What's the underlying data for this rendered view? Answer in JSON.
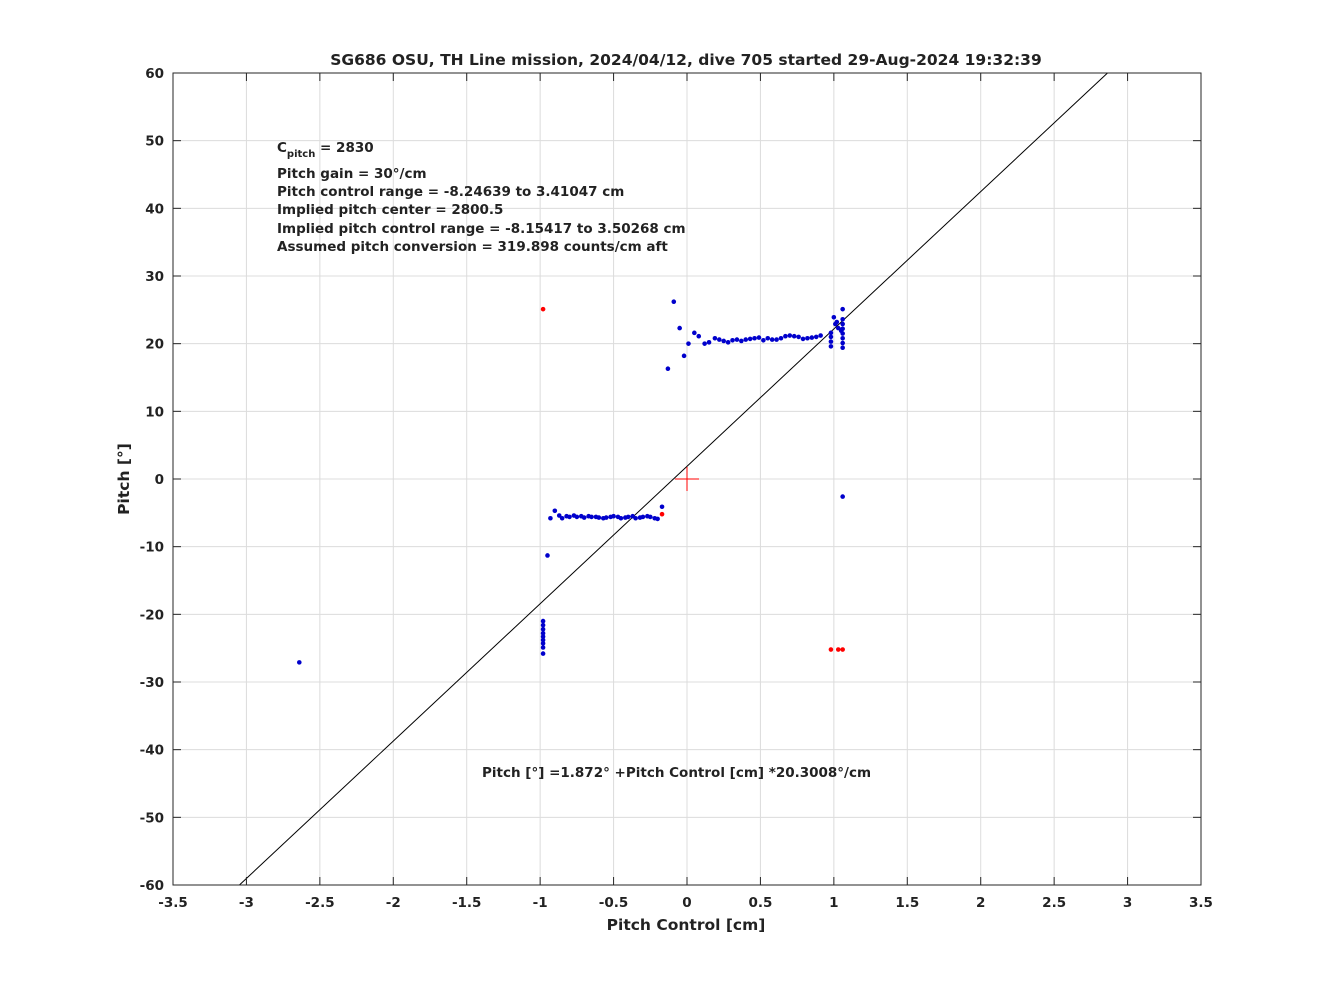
{
  "chart_data": {
    "type": "scatter",
    "title": "SG686 OSU, TH Line mission, 2024/04/12, dive 705 started 29-Aug-2024 19:32:39",
    "xlabel": "Pitch Control [cm]",
    "ylabel": "Pitch [°]",
    "xlim": [
      -3.5,
      3.5
    ],
    "ylim": [
      -60,
      60
    ],
    "grid": true,
    "xticks": [
      -3.5,
      -3,
      -2.5,
      -2,
      -1.5,
      -1,
      -0.5,
      0,
      0.5,
      1,
      1.5,
      2,
      2.5,
      3,
      3.5
    ],
    "yticks": [
      -60,
      -50,
      -40,
      -30,
      -20,
      -10,
      0,
      10,
      20,
      30,
      40,
      50,
      60
    ],
    "xtick_labels": [
      "-3.5",
      "-3",
      "-2.5",
      "-2",
      "-1.5",
      "-1",
      "-0.5",
      "0",
      "0.5",
      "1",
      "1.5",
      "2",
      "2.5",
      "3",
      "3.5"
    ],
    "ytick_labels": [
      "-60",
      "-50",
      "-40",
      "-30",
      "-20",
      "-10",
      "0",
      "10",
      "20",
      "30",
      "40",
      "50",
      "60"
    ],
    "annotations": {
      "c_pitch_main": "C",
      "c_pitch_sub": "pitch",
      "c_pitch_value": " = 2830",
      "lines": [
        "Pitch gain = 30°/cm",
        "Pitch control range = -8.24639 to 3.41047 cm",
        "Implied pitch center = 2800.5",
        "Implied pitch control range = -8.15417 to 3.50268 cm",
        "Assumed pitch conversion = 319.898 counts/cm aft"
      ],
      "fit_label": "Pitch [°] =1.872° +Pitch Control [cm] *20.3008°/cm"
    },
    "fit": {
      "intercept": 1.872,
      "slope": 20.3008,
      "color": "#000000"
    },
    "center_marker": {
      "x": 0,
      "y": 0,
      "color": "#ff0000"
    },
    "series": [
      {
        "color": "#0000cc",
        "points": [
          [
            -2.64,
            -27.1
          ],
          [
            -0.95,
            -11.3
          ],
          [
            -0.98,
            -21.0
          ],
          [
            -0.98,
            -21.6
          ],
          [
            -0.98,
            -22.2
          ],
          [
            -0.98,
            -22.8
          ],
          [
            -0.98,
            -23.3
          ],
          [
            -0.98,
            -23.8
          ],
          [
            -0.98,
            -24.3
          ],
          [
            -0.98,
            -24.9
          ],
          [
            -0.98,
            -25.8
          ],
          [
            -0.93,
            -5.8
          ],
          [
            -0.9,
            -4.7
          ],
          [
            -0.87,
            -5.4
          ],
          [
            -0.85,
            -5.8
          ],
          [
            -0.82,
            -5.5
          ],
          [
            -0.8,
            -5.6
          ],
          [
            -0.77,
            -5.4
          ],
          [
            -0.75,
            -5.6
          ],
          [
            -0.72,
            -5.5
          ],
          [
            -0.7,
            -5.7
          ],
          [
            -0.67,
            -5.5
          ],
          [
            -0.65,
            -5.6
          ],
          [
            -0.62,
            -5.6
          ],
          [
            -0.6,
            -5.7
          ],
          [
            -0.57,
            -5.8
          ],
          [
            -0.55,
            -5.7
          ],
          [
            -0.52,
            -5.6
          ],
          [
            -0.5,
            -5.5
          ],
          [
            -0.47,
            -5.6
          ],
          [
            -0.45,
            -5.8
          ],
          [
            -0.42,
            -5.7
          ],
          [
            -0.4,
            -5.6
          ],
          [
            -0.37,
            -5.5
          ],
          [
            -0.35,
            -5.8
          ],
          [
            -0.32,
            -5.7
          ],
          [
            -0.3,
            -5.6
          ],
          [
            -0.27,
            -5.5
          ],
          [
            -0.25,
            -5.6
          ],
          [
            -0.22,
            -5.8
          ],
          [
            -0.2,
            -5.9
          ],
          [
            -0.17,
            -4.1
          ],
          [
            -0.13,
            16.3
          ],
          [
            -0.09,
            26.2
          ],
          [
            -0.05,
            22.3
          ],
          [
            -0.02,
            18.2
          ],
          [
            0.01,
            20.0
          ],
          [
            0.05,
            21.6
          ],
          [
            0.08,
            21.1
          ],
          [
            0.12,
            20.0
          ],
          [
            0.15,
            20.2
          ],
          [
            0.19,
            20.8
          ],
          [
            0.22,
            20.6
          ],
          [
            0.25,
            20.4
          ],
          [
            0.28,
            20.2
          ],
          [
            0.31,
            20.5
          ],
          [
            0.34,
            20.6
          ],
          [
            0.37,
            20.4
          ],
          [
            0.4,
            20.6
          ],
          [
            0.43,
            20.7
          ],
          [
            0.46,
            20.8
          ],
          [
            0.49,
            20.9
          ],
          [
            0.52,
            20.5
          ],
          [
            0.55,
            20.8
          ],
          [
            0.58,
            20.6
          ],
          [
            0.61,
            20.6
          ],
          [
            0.64,
            20.8
          ],
          [
            0.67,
            21.1
          ],
          [
            0.7,
            21.2
          ],
          [
            0.73,
            21.1
          ],
          [
            0.76,
            21.0
          ],
          [
            0.79,
            20.7
          ],
          [
            0.82,
            20.8
          ],
          [
            0.85,
            20.9
          ],
          [
            0.88,
            21.0
          ],
          [
            0.91,
            21.2
          ],
          [
            0.98,
            19.6
          ],
          [
            0.98,
            20.3
          ],
          [
            0.98,
            21.0
          ],
          [
            0.98,
            21.6
          ],
          [
            1.0,
            23.9
          ],
          [
            1.01,
            22.9
          ],
          [
            1.02,
            23.2
          ],
          [
            1.03,
            22.3
          ],
          [
            1.05,
            21.9
          ],
          [
            1.06,
            19.4
          ],
          [
            1.06,
            20.1
          ],
          [
            1.06,
            20.8
          ],
          [
            1.06,
            21.5
          ],
          [
            1.06,
            22.2
          ],
          [
            1.06,
            22.9
          ],
          [
            1.06,
            23.6
          ],
          [
            1.06,
            25.1
          ],
          [
            1.06,
            -2.6
          ]
        ]
      },
      {
        "color": "#ff0000",
        "points": [
          [
            -0.98,
            25.1
          ],
          [
            -0.17,
            -5.2
          ],
          [
            0.98,
            -25.2
          ],
          [
            1.03,
            -25.2
          ],
          [
            1.06,
            -25.2
          ]
        ]
      }
    ]
  }
}
